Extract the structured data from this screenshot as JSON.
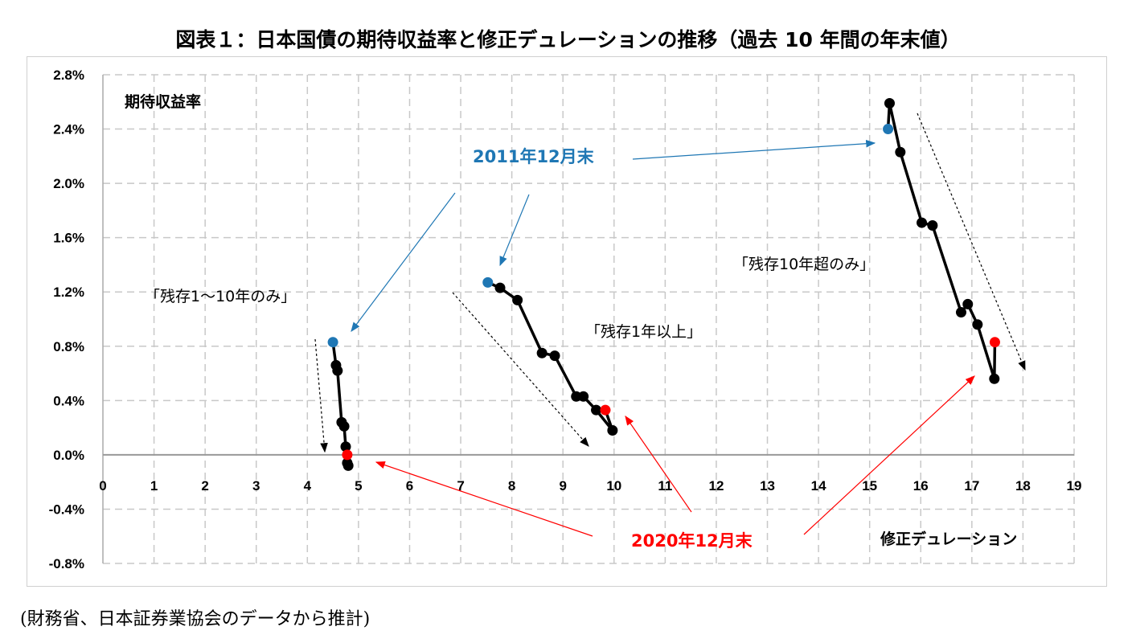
{
  "chart_data": {
    "type": "scatter",
    "title": "図表１：日本国債の期待収益率と修正デュレーションの推移（過去 10 年間の年末値）",
    "xlabel": "修正デュレーション",
    "ylabel": "期待収益率",
    "xlim": [
      0,
      19
    ],
    "ylim": [
      -0.8,
      2.8
    ],
    "x_ticks": [
      "0",
      "1",
      "2",
      "3",
      "4",
      "5",
      "6",
      "7",
      "8",
      "9",
      "10",
      "11",
      "12",
      "13",
      "14",
      "15",
      "16",
      "17",
      "18",
      "19"
    ],
    "y_ticks": [
      "2.8%",
      "2.4%",
      "2.0%",
      "1.6%",
      "1.2%",
      "0.8%",
      "0.4%",
      "0.0%",
      "-0.4%",
      "-0.8%"
    ],
    "grid": true,
    "series": [
      {
        "name": "「残存1～10年のみ」",
        "points": [
          [
            4.5,
            0.83
          ],
          [
            4.56,
            0.66
          ],
          [
            4.59,
            0.62
          ],
          [
            4.67,
            0.24
          ],
          [
            4.72,
            0.21
          ],
          [
            4.75,
            0.06
          ],
          [
            4.78,
            -0.06
          ],
          [
            4.8,
            -0.08
          ],
          [
            4.78,
            0.0
          ]
        ]
      },
      {
        "name": "「残存1年以上」",
        "points": [
          [
            7.53,
            1.27
          ],
          [
            7.77,
            1.23
          ],
          [
            8.11,
            1.14
          ],
          [
            8.59,
            0.75
          ],
          [
            8.84,
            0.73
          ],
          [
            9.26,
            0.43
          ],
          [
            9.4,
            0.43
          ],
          [
            9.65,
            0.33
          ],
          [
            9.97,
            0.18
          ],
          [
            9.83,
            0.33
          ]
        ]
      },
      {
        "name": "「残存10年超のみ」",
        "points": [
          [
            15.36,
            2.4
          ],
          [
            15.39,
            2.59
          ],
          [
            15.6,
            2.23
          ],
          [
            16.02,
            1.71
          ],
          [
            16.23,
            1.69
          ],
          [
            16.79,
            1.05
          ],
          [
            16.92,
            1.11
          ],
          [
            17.11,
            0.96
          ],
          [
            17.44,
            0.56
          ],
          [
            17.45,
            0.83
          ]
        ]
      }
    ],
    "annotations": {
      "start": "2011年12月末",
      "end": "2020年12月末"
    },
    "colors": {
      "start": "#1f77b4",
      "end": "#ff0000",
      "line": "#000000",
      "grid": "#c8c8c8"
    }
  },
  "source": "(財務省、日本証券業協会のデータから推計)"
}
